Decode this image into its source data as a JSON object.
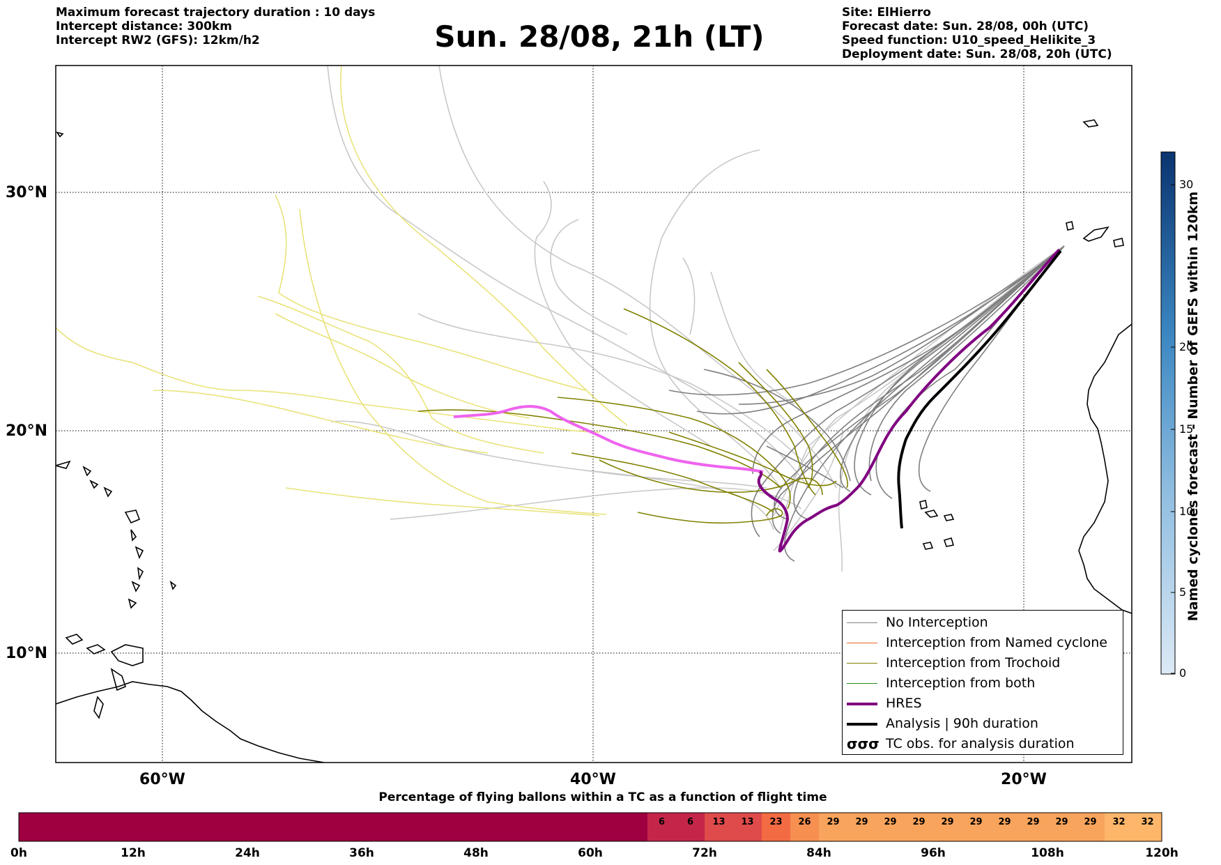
{
  "header": {
    "left": [
      "Maximum forecast trajectory duration : 10 days",
      "Intercept distance: 300km",
      "Intercept RW2 (GFS):  12km/h2"
    ],
    "title": "Sun. 28/08, 21h (LT)",
    "right": [
      "Site: ElHierro",
      "Forecast date: Sun. 28/08, 00h (UTC)",
      "Speed function: U10_speed_Helikite_3",
      "Deployment date: Sun. 28/08, 20h (UTC)"
    ]
  },
  "map": {
    "lat_labels": [
      "30°N",
      "20°N",
      "10°N"
    ],
    "lon_labels": [
      "60°W",
      "40°W",
      "20°W"
    ]
  },
  "legend": {
    "items": [
      {
        "label": "No Interception",
        "color": "#808080",
        "style": "thin"
      },
      {
        "label": "Interception from Named cyclone",
        "color": "#e8601c",
        "style": "thin"
      },
      {
        "label": "Interception from Trochoid",
        "color": "#808000",
        "style": "thin"
      },
      {
        "label": "Interception from both",
        "color": "#228b22",
        "style": "thin"
      },
      {
        "label": "HRES",
        "color": "#800080",
        "style": "thick"
      },
      {
        "label": "Analysis | 90h duration",
        "color": "#000000",
        "style": "thick"
      },
      {
        "label": "TC obs. for analysis duration",
        "color": "#000000",
        "style": "symbol",
        "symbol": "σσσ"
      }
    ]
  },
  "colorbar": {
    "label": "Named cyclones forecast - Number of GEFS within 120km",
    "ticks": [
      "0",
      "5",
      "10",
      "15",
      "20",
      "30"
    ]
  },
  "percentage_bar": {
    "title": "Percentage of flying ballons within a TC as a function of flight time",
    "values": [
      0,
      0,
      0,
      0,
      0,
      0,
      0,
      0,
      0,
      0,
      0,
      0,
      0,
      0,
      0,
      0,
      0,
      0,
      0,
      0,
      0,
      0,
      6,
      6,
      13,
      13,
      23,
      26,
      29,
      29,
      29,
      29,
      29,
      29,
      29,
      29,
      29,
      29,
      32,
      32
    ],
    "hour_labels": [
      "0h",
      "12h",
      "24h",
      "36h",
      "48h",
      "60h",
      "72h",
      "84h",
      "96h",
      "108h",
      "120h"
    ]
  }
}
